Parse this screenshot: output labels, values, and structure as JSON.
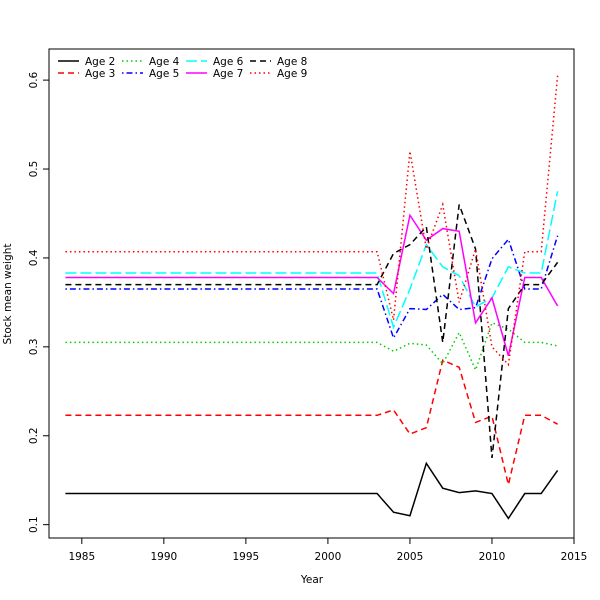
{
  "chart_data": {
    "type": "line",
    "title": "",
    "xlabel": "Year",
    "ylabel": "Stock mean weight",
    "xlim": [
      1983,
      2015
    ],
    "ylim": [
      0.085,
      0.635
    ],
    "xticks": [
      1985,
      1990,
      1995,
      2000,
      2005,
      2010,
      2015
    ],
    "yticks": [
      0.1,
      0.2,
      0.3,
      0.4,
      0.5,
      0.6
    ],
    "grid": false,
    "legend_position": "top-left",
    "x": [
      1984,
      1985,
      1986,
      1987,
      1988,
      1989,
      1990,
      1991,
      1992,
      1993,
      1994,
      1995,
      1996,
      1997,
      1998,
      1999,
      2000,
      2001,
      2002,
      2003,
      2004,
      2005,
      2006,
      2007,
      2008,
      2009,
      2010,
      2011,
      2012,
      2013,
      2014
    ],
    "series": [
      {
        "name": "Age 2",
        "color": "#000000",
        "dash": "solid",
        "values": [
          0.135,
          0.135,
          0.135,
          0.135,
          0.135,
          0.135,
          0.135,
          0.135,
          0.135,
          0.135,
          0.135,
          0.135,
          0.135,
          0.135,
          0.135,
          0.135,
          0.135,
          0.135,
          0.135,
          0.135,
          0.114,
          0.11,
          0.169,
          0.141,
          0.136,
          0.138,
          0.135,
          0.107,
          0.135,
          0.135,
          0.161
        ]
      },
      {
        "name": "Age 3",
        "color": "#ff0000",
        "dash": "dashed",
        "values": [
          0.223,
          0.223,
          0.223,
          0.223,
          0.223,
          0.223,
          0.223,
          0.223,
          0.223,
          0.223,
          0.223,
          0.223,
          0.223,
          0.223,
          0.223,
          0.223,
          0.223,
          0.223,
          0.223,
          0.223,
          0.229,
          0.202,
          0.209,
          0.285,
          0.277,
          0.215,
          0.222,
          0.145,
          0.223,
          0.223,
          0.213
        ]
      },
      {
        "name": "Age 4",
        "color": "#00cd00",
        "dash": "dotted",
        "values": [
          0.305,
          0.305,
          0.305,
          0.305,
          0.305,
          0.305,
          0.305,
          0.305,
          0.305,
          0.305,
          0.305,
          0.305,
          0.305,
          0.305,
          0.305,
          0.305,
          0.305,
          0.305,
          0.305,
          0.305,
          0.295,
          0.304,
          0.302,
          0.281,
          0.316,
          0.274,
          0.327,
          0.32,
          0.305,
          0.305,
          0.301
        ]
      },
      {
        "name": "Age 5",
        "color": "#0000ff",
        "dash": "dotdash",
        "values": [
          0.365,
          0.365,
          0.365,
          0.365,
          0.365,
          0.365,
          0.365,
          0.365,
          0.365,
          0.365,
          0.365,
          0.365,
          0.365,
          0.365,
          0.365,
          0.365,
          0.365,
          0.365,
          0.365,
          0.365,
          0.31,
          0.343,
          0.342,
          0.359,
          0.342,
          0.344,
          0.399,
          0.421,
          0.365,
          0.365,
          0.425
        ]
      },
      {
        "name": "Age 6",
        "color": "#00ffff",
        "dash": "longdash",
        "values": [
          0.383,
          0.383,
          0.383,
          0.383,
          0.383,
          0.383,
          0.383,
          0.383,
          0.383,
          0.383,
          0.383,
          0.383,
          0.383,
          0.383,
          0.383,
          0.383,
          0.383,
          0.383,
          0.383,
          0.383,
          0.322,
          0.365,
          0.415,
          0.39,
          0.38,
          0.345,
          0.355,
          0.39,
          0.383,
          0.383,
          0.475
        ]
      },
      {
        "name": "Age 7",
        "color": "#ff00ff",
        "dash": "solid",
        "values": [
          0.378,
          0.378,
          0.378,
          0.378,
          0.378,
          0.378,
          0.378,
          0.378,
          0.378,
          0.378,
          0.378,
          0.378,
          0.378,
          0.378,
          0.378,
          0.378,
          0.378,
          0.378,
          0.378,
          0.378,
          0.36,
          0.448,
          0.42,
          0.433,
          0.43,
          0.327,
          0.355,
          0.29,
          0.378,
          0.378,
          0.346
        ]
      },
      {
        "name": "Age 8",
        "color": "#000000",
        "dash": "dashed",
        "values": [
          0.37,
          0.37,
          0.37,
          0.37,
          0.37,
          0.37,
          0.37,
          0.37,
          0.37,
          0.37,
          0.37,
          0.37,
          0.37,
          0.37,
          0.37,
          0.37,
          0.37,
          0.37,
          0.37,
          0.37,
          0.405,
          0.415,
          0.435,
          0.305,
          0.46,
          0.41,
          0.175,
          0.343,
          0.37,
          0.37,
          0.395
        ]
      },
      {
        "name": "Age 9",
        "color": "#ff0000",
        "dash": "dotted",
        "values": [
          0.407,
          0.407,
          0.407,
          0.407,
          0.407,
          0.407,
          0.407,
          0.407,
          0.407,
          0.407,
          0.407,
          0.407,
          0.407,
          0.407,
          0.407,
          0.407,
          0.407,
          0.407,
          0.407,
          0.407,
          0.33,
          0.52,
          0.41,
          0.46,
          0.35,
          0.41,
          0.3,
          0.28,
          0.407,
          0.407,
          0.605
        ]
      }
    ]
  }
}
